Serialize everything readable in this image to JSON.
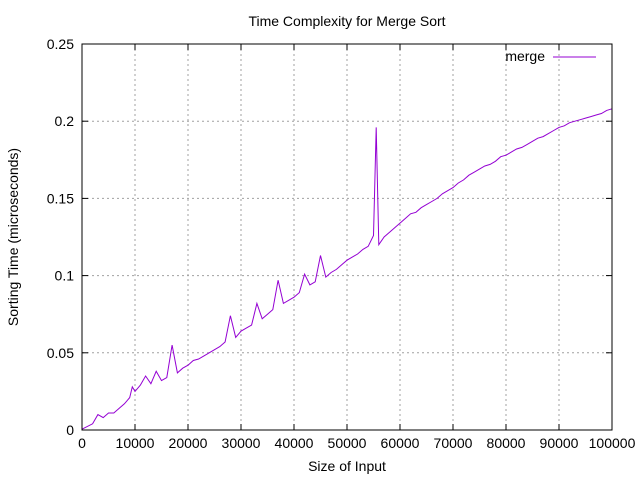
{
  "chart_data": {
    "type": "line",
    "title": "Time Complexity for Merge Sort",
    "xlabel": "Size of Input",
    "ylabel": "Sorting Time (microseconds)",
    "xlim": [
      0,
      100000
    ],
    "ylim": [
      0,
      0.25
    ],
    "x_ticks": [
      "0",
      "10000",
      "20000",
      "30000",
      "40000",
      "50000",
      "60000",
      "70000",
      "80000",
      "90000",
      "100000"
    ],
    "y_ticks": [
      "0",
      "0.05",
      "0.1",
      "0.15",
      "0.2",
      "0.25"
    ],
    "grid": true,
    "legend_position": "top-right",
    "series": [
      {
        "name": "merge",
        "color": "#9400d3",
        "points": [
          [
            0,
            0.0005
          ],
          [
            2000,
            0.004
          ],
          [
            3000,
            0.01
          ],
          [
            4000,
            0.008
          ],
          [
            5000,
            0.011
          ],
          [
            6000,
            0.011
          ],
          [
            7000,
            0.014
          ],
          [
            8000,
            0.017
          ],
          [
            9000,
            0.021
          ],
          [
            9500,
            0.028
          ],
          [
            10000,
            0.025
          ],
          [
            11000,
            0.029
          ],
          [
            12000,
            0.035
          ],
          [
            13000,
            0.03
          ],
          [
            14000,
            0.038
          ],
          [
            15000,
            0.032
          ],
          [
            16000,
            0.034
          ],
          [
            17000,
            0.055
          ],
          [
            18000,
            0.037
          ],
          [
            19000,
            0.04
          ],
          [
            20000,
            0.042
          ],
          [
            21000,
            0.045
          ],
          [
            22000,
            0.046
          ],
          [
            23000,
            0.048
          ],
          [
            24000,
            0.05
          ],
          [
            25000,
            0.052
          ],
          [
            26000,
            0.054
          ],
          [
            27000,
            0.057
          ],
          [
            28000,
            0.074
          ],
          [
            29000,
            0.06
          ],
          [
            30000,
            0.064
          ],
          [
            31000,
            0.066
          ],
          [
            32000,
            0.068
          ],
          [
            33000,
            0.082
          ],
          [
            34000,
            0.072
          ],
          [
            35000,
            0.075
          ],
          [
            36000,
            0.078
          ],
          [
            37000,
            0.097
          ],
          [
            38000,
            0.082
          ],
          [
            39000,
            0.084
          ],
          [
            40000,
            0.086
          ],
          [
            41000,
            0.089
          ],
          [
            42000,
            0.101
          ],
          [
            43000,
            0.094
          ],
          [
            44000,
            0.096
          ],
          [
            45000,
            0.113
          ],
          [
            46000,
            0.099
          ],
          [
            47000,
            0.102
          ],
          [
            48000,
            0.104
          ],
          [
            49000,
            0.107
          ],
          [
            50000,
            0.11
          ],
          [
            51000,
            0.112
          ],
          [
            52000,
            0.114
          ],
          [
            53000,
            0.117
          ],
          [
            54000,
            0.119
          ],
          [
            55000,
            0.126
          ],
          [
            55500,
            0.196
          ],
          [
            56000,
            0.12
          ],
          [
            57000,
            0.125
          ],
          [
            58000,
            0.128
          ],
          [
            59000,
            0.131
          ],
          [
            60000,
            0.134
          ],
          [
            61000,
            0.137
          ],
          [
            62000,
            0.14
          ],
          [
            63000,
            0.141
          ],
          [
            64000,
            0.144
          ],
          [
            65000,
            0.146
          ],
          [
            66000,
            0.148
          ],
          [
            67000,
            0.15
          ],
          [
            68000,
            0.153
          ],
          [
            69000,
            0.155
          ],
          [
            70000,
            0.157
          ],
          [
            71000,
            0.16
          ],
          [
            72000,
            0.162
          ],
          [
            73000,
            0.165
          ],
          [
            74000,
            0.167
          ],
          [
            75000,
            0.169
          ],
          [
            76000,
            0.171
          ],
          [
            77000,
            0.172
          ],
          [
            78000,
            0.174
          ],
          [
            79000,
            0.177
          ],
          [
            80000,
            0.178
          ],
          [
            81000,
            0.18
          ],
          [
            82000,
            0.182
          ],
          [
            83000,
            0.183
          ],
          [
            84000,
            0.185
          ],
          [
            85000,
            0.187
          ],
          [
            86000,
            0.189
          ],
          [
            87000,
            0.19
          ],
          [
            88000,
            0.192
          ],
          [
            89000,
            0.194
          ],
          [
            90000,
            0.196
          ],
          [
            91000,
            0.197
          ],
          [
            92000,
            0.199
          ],
          [
            93000,
            0.2
          ],
          [
            94000,
            0.201
          ],
          [
            95000,
            0.202
          ],
          [
            96000,
            0.203
          ],
          [
            97000,
            0.204
          ],
          [
            98000,
            0.205
          ],
          [
            99000,
            0.207
          ],
          [
            100000,
            0.208
          ]
        ]
      }
    ]
  }
}
